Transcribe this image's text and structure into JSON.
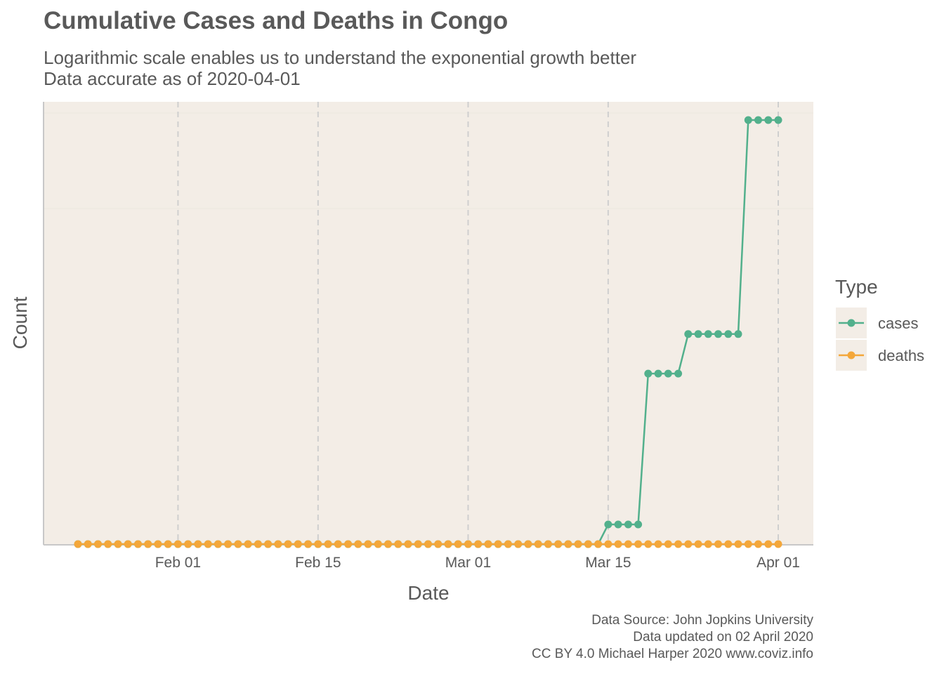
{
  "title": "Cumulative Cases and Deaths in Congo",
  "subtitle_line1": "Logarithmic scale enables us to understand the exponential growth better",
  "subtitle_line2": "Data accurate as of 2020-04-01",
  "caption": {
    "line1": "Data Source: John Jopkins University",
    "line2": "Data updated on 02 April 2020",
    "line3": "CC BY 4.0 Michael Harper 2020 www.coviz.info"
  },
  "colors": {
    "panel_bg": "#f3ede6",
    "grid": "#cfcfcf",
    "cases": "#52b08c",
    "deaths": "#f4a73a",
    "text": "#595959"
  },
  "chart_data": {
    "type": "line",
    "xlabel": "Date",
    "ylabel": "Count",
    "y_scale": "log",
    "x_range": [
      "2020-01-22",
      "2020-04-01"
    ],
    "x_ticks": [
      {
        "date": "2020-02-01",
        "label": "Feb 01"
      },
      {
        "date": "2020-02-15",
        "label": "Feb 15"
      },
      {
        "date": "2020-03-01",
        "label": "Mar 01"
      },
      {
        "date": "2020-03-15",
        "label": "Mar 15"
      },
      {
        "date": "2020-04-01",
        "label": "Apr 01"
      }
    ],
    "legend": {
      "title": "Type",
      "position": "right"
    },
    "series": [
      {
        "name": "cases",
        "color": "#52b08c",
        "points": [
          [
            "2020-01-22",
            0
          ],
          [
            "2020-01-23",
            0
          ],
          [
            "2020-01-24",
            0
          ],
          [
            "2020-01-25",
            0
          ],
          [
            "2020-01-26",
            0
          ],
          [
            "2020-01-27",
            0
          ],
          [
            "2020-01-28",
            0
          ],
          [
            "2020-01-29",
            0
          ],
          [
            "2020-01-30",
            0
          ],
          [
            "2020-01-31",
            0
          ],
          [
            "2020-02-01",
            0
          ],
          [
            "2020-02-02",
            0
          ],
          [
            "2020-02-03",
            0
          ],
          [
            "2020-02-04",
            0
          ],
          [
            "2020-02-05",
            0
          ],
          [
            "2020-02-06",
            0
          ],
          [
            "2020-02-07",
            0
          ],
          [
            "2020-02-08",
            0
          ],
          [
            "2020-02-09",
            0
          ],
          [
            "2020-02-10",
            0
          ],
          [
            "2020-02-11",
            0
          ],
          [
            "2020-02-12",
            0
          ],
          [
            "2020-02-13",
            0
          ],
          [
            "2020-02-14",
            0
          ],
          [
            "2020-02-15",
            0
          ],
          [
            "2020-02-16",
            0
          ],
          [
            "2020-02-17",
            0
          ],
          [
            "2020-02-18",
            0
          ],
          [
            "2020-02-19",
            0
          ],
          [
            "2020-02-20",
            0
          ],
          [
            "2020-02-21",
            0
          ],
          [
            "2020-02-22",
            0
          ],
          [
            "2020-02-23",
            0
          ],
          [
            "2020-02-24",
            0
          ],
          [
            "2020-02-25",
            0
          ],
          [
            "2020-02-26",
            0
          ],
          [
            "2020-02-27",
            0
          ],
          [
            "2020-02-28",
            0
          ],
          [
            "2020-02-29",
            0
          ],
          [
            "2020-03-01",
            0
          ],
          [
            "2020-03-02",
            0
          ],
          [
            "2020-03-03",
            0
          ],
          [
            "2020-03-04",
            0
          ],
          [
            "2020-03-05",
            0
          ],
          [
            "2020-03-06",
            0
          ],
          [
            "2020-03-07",
            0
          ],
          [
            "2020-03-08",
            0
          ],
          [
            "2020-03-09",
            0
          ],
          [
            "2020-03-10",
            0
          ],
          [
            "2020-03-11",
            0
          ],
          [
            "2020-03-12",
            0
          ],
          [
            "2020-03-13",
            0
          ],
          [
            "2020-03-14",
            0
          ],
          [
            "2020-03-15",
            1
          ],
          [
            "2020-03-16",
            1
          ],
          [
            "2020-03-17",
            1
          ],
          [
            "2020-03-18",
            1
          ],
          [
            "2020-03-19",
            3
          ],
          [
            "2020-03-20",
            3
          ],
          [
            "2020-03-21",
            3
          ],
          [
            "2020-03-22",
            3
          ],
          [
            "2020-03-23",
            4
          ],
          [
            "2020-03-24",
            4
          ],
          [
            "2020-03-25",
            4
          ],
          [
            "2020-03-26",
            4
          ],
          [
            "2020-03-27",
            4
          ],
          [
            "2020-03-28",
            4
          ],
          [
            "2020-03-29",
            19
          ],
          [
            "2020-03-30",
            19
          ],
          [
            "2020-03-31",
            19
          ],
          [
            "2020-04-01",
            19
          ]
        ]
      },
      {
        "name": "deaths",
        "color": "#f4a73a",
        "points": [
          [
            "2020-01-22",
            0
          ],
          [
            "2020-01-23",
            0
          ],
          [
            "2020-01-24",
            0
          ],
          [
            "2020-01-25",
            0
          ],
          [
            "2020-01-26",
            0
          ],
          [
            "2020-01-27",
            0
          ],
          [
            "2020-01-28",
            0
          ],
          [
            "2020-01-29",
            0
          ],
          [
            "2020-01-30",
            0
          ],
          [
            "2020-01-31",
            0
          ],
          [
            "2020-02-01",
            0
          ],
          [
            "2020-02-02",
            0
          ],
          [
            "2020-02-03",
            0
          ],
          [
            "2020-02-04",
            0
          ],
          [
            "2020-02-05",
            0
          ],
          [
            "2020-02-06",
            0
          ],
          [
            "2020-02-07",
            0
          ],
          [
            "2020-02-08",
            0
          ],
          [
            "2020-02-09",
            0
          ],
          [
            "2020-02-10",
            0
          ],
          [
            "2020-02-11",
            0
          ],
          [
            "2020-02-12",
            0
          ],
          [
            "2020-02-13",
            0
          ],
          [
            "2020-02-14",
            0
          ],
          [
            "2020-02-15",
            0
          ],
          [
            "2020-02-16",
            0
          ],
          [
            "2020-02-17",
            0
          ],
          [
            "2020-02-18",
            0
          ],
          [
            "2020-02-19",
            0
          ],
          [
            "2020-02-20",
            0
          ],
          [
            "2020-02-21",
            0
          ],
          [
            "2020-02-22",
            0
          ],
          [
            "2020-02-23",
            0
          ],
          [
            "2020-02-24",
            0
          ],
          [
            "2020-02-25",
            0
          ],
          [
            "2020-02-26",
            0
          ],
          [
            "2020-02-27",
            0
          ],
          [
            "2020-02-28",
            0
          ],
          [
            "2020-02-29",
            0
          ],
          [
            "2020-03-01",
            0
          ],
          [
            "2020-03-02",
            0
          ],
          [
            "2020-03-03",
            0
          ],
          [
            "2020-03-04",
            0
          ],
          [
            "2020-03-05",
            0
          ],
          [
            "2020-03-06",
            0
          ],
          [
            "2020-03-07",
            0
          ],
          [
            "2020-03-08",
            0
          ],
          [
            "2020-03-09",
            0
          ],
          [
            "2020-03-10",
            0
          ],
          [
            "2020-03-11",
            0
          ],
          [
            "2020-03-12",
            0
          ],
          [
            "2020-03-13",
            0
          ],
          [
            "2020-03-14",
            0
          ],
          [
            "2020-03-15",
            0
          ],
          [
            "2020-03-16",
            0
          ],
          [
            "2020-03-17",
            0
          ],
          [
            "2020-03-18",
            0
          ],
          [
            "2020-03-19",
            0
          ],
          [
            "2020-03-20",
            0
          ],
          [
            "2020-03-21",
            0
          ],
          [
            "2020-03-22",
            0
          ],
          [
            "2020-03-23",
            0
          ],
          [
            "2020-03-24",
            0
          ],
          [
            "2020-03-25",
            0
          ],
          [
            "2020-03-26",
            0
          ],
          [
            "2020-03-27",
            0
          ],
          [
            "2020-03-28",
            0
          ],
          [
            "2020-03-29",
            0
          ],
          [
            "2020-03-30",
            0
          ],
          [
            "2020-03-31",
            0
          ],
          [
            "2020-04-01",
            0
          ]
        ]
      }
    ]
  }
}
